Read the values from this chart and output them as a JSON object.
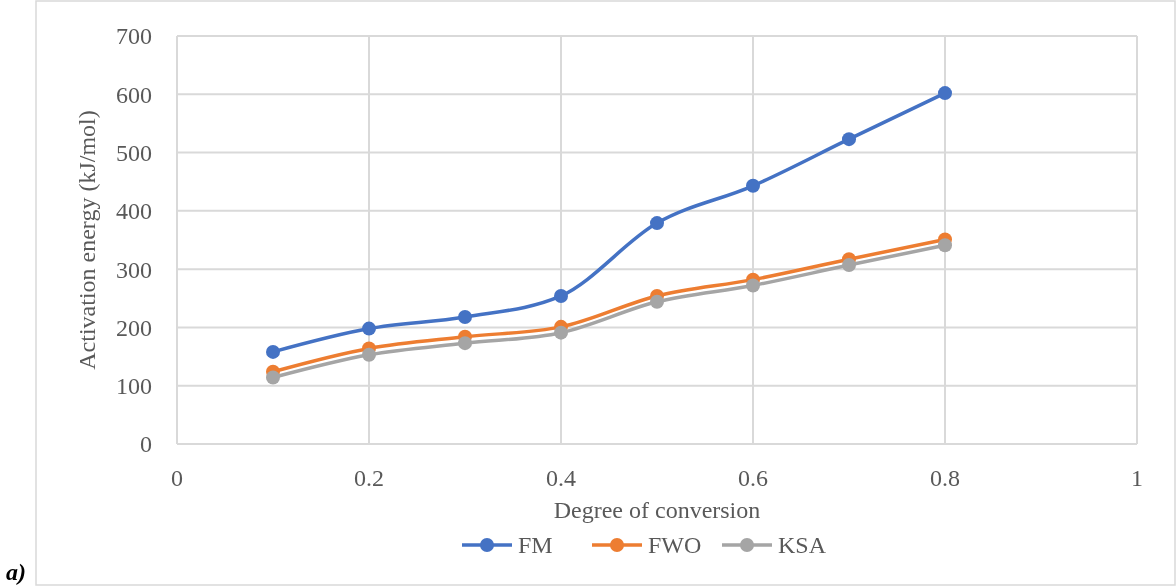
{
  "chart_data": {
    "type": "line",
    "xlabel": "Degree of conversion",
    "ylabel": "Activation energy (kJ/mol)",
    "annotations": [
      "a)"
    ],
    "x": [
      0.1,
      0.2,
      0.3,
      0.4,
      0.5,
      0.6,
      0.7,
      0.8
    ],
    "series": [
      {
        "name": "FM",
        "color": "#4472c4",
        "values": [
          158,
          198,
          218,
          254,
          379,
          443,
          523,
          602
        ]
      },
      {
        "name": "FWO",
        "color": "#ed7d31",
        "values": [
          124,
          164,
          184,
          201,
          254,
          282,
          317,
          351
        ]
      },
      {
        "name": "KSA",
        "color": "#a5a5a5",
        "values": [
          114,
          153,
          173,
          191,
          244,
          272,
          307,
          341
        ]
      }
    ],
    "xlim": [
      0,
      1
    ],
    "xticks": [
      0,
      0.2,
      0.4,
      0.6,
      0.8,
      1
    ],
    "ylim": [
      0,
      700
    ],
    "yticks": [
      0,
      100,
      200,
      300,
      400,
      500,
      600,
      700
    ],
    "grid": true,
    "legend": "bottom",
    "marker": "circle",
    "line_style": "solid"
  }
}
